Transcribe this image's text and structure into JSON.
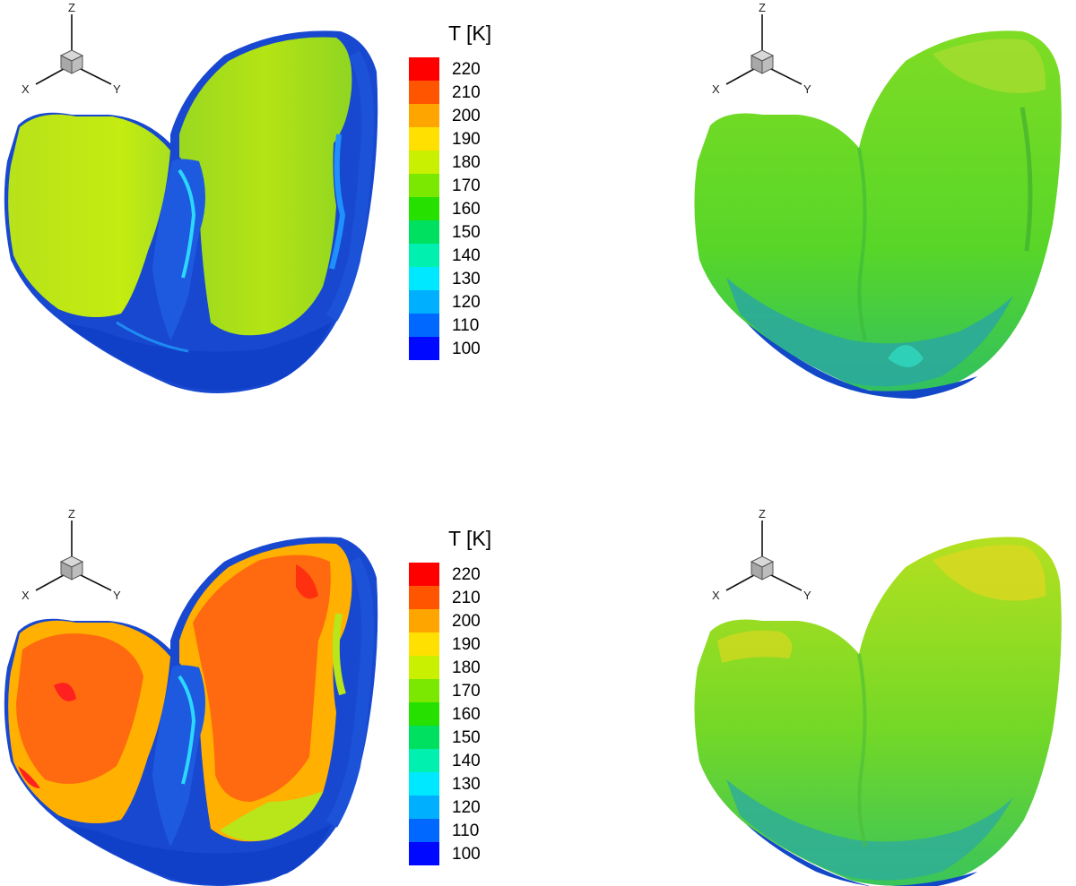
{
  "legend": {
    "title": "T [K]",
    "levels": [
      {
        "value": "220",
        "color": "#ff0000"
      },
      {
        "value": "210",
        "color": "#ff5500"
      },
      {
        "value": "200",
        "color": "#ffa500"
      },
      {
        "value": "190",
        "color": "#ffe000"
      },
      {
        "value": "180",
        "color": "#c8f000"
      },
      {
        "value": "170",
        "color": "#7ae800"
      },
      {
        "value": "160",
        "color": "#26e000"
      },
      {
        "value": "150",
        "color": "#00e060"
      },
      {
        "value": "140",
        "color": "#00f0b0"
      },
      {
        "value": "130",
        "color": "#00e8ff"
      },
      {
        "value": "120",
        "color": "#00b0ff"
      },
      {
        "value": "110",
        "color": "#0068ff"
      },
      {
        "value": "100",
        "color": "#0008ff"
      }
    ]
  },
  "axes": {
    "z": "Z",
    "x": "X",
    "y": "Y"
  },
  "colors": {
    "cold": "#1040d8",
    "cool": "#20a8ff",
    "mid": "#62e020",
    "warm": "#c8ef10",
    "hot": "#ff6a00"
  }
}
